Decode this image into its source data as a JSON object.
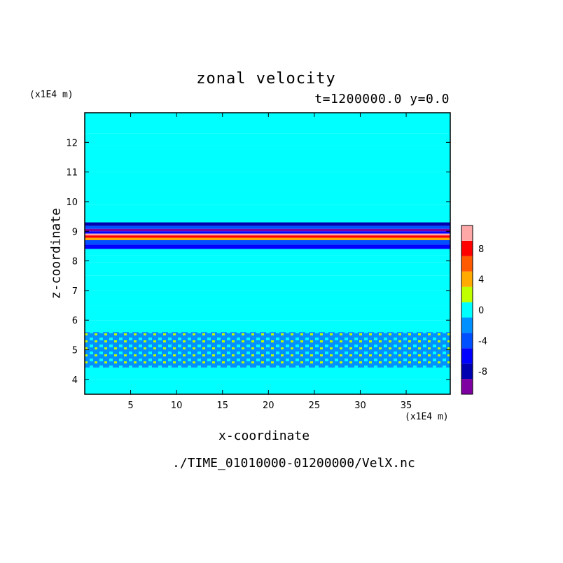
{
  "chart_data": {
    "type": "heatmap",
    "title": "zonal velocity",
    "subtitle": "t=1200000.0 y=0.0",
    "xlabel": "x-coordinate",
    "ylabel": "z-coordinate",
    "x_unit": "(x1E4 m)",
    "y_unit": "(x1E4 m)",
    "xlim": [
      0,
      39.8
    ],
    "ylim": [
      3.5,
      13.0
    ],
    "x_ticks": [
      5,
      10,
      15,
      20,
      25,
      30,
      35
    ],
    "y_ticks": [
      4,
      5,
      6,
      7,
      8,
      9,
      10,
      11,
      12
    ],
    "colorbar": {
      "levels": [
        -10,
        -9,
        -8,
        -7,
        -6,
        -5,
        -4,
        -3,
        -2,
        -1,
        0,
        1,
        2,
        3,
        4,
        5,
        6,
        7,
        8,
        9,
        10
      ],
      "tick_labels": [
        "8",
        "4",
        "0",
        "-4",
        "-8"
      ],
      "tick_values": [
        8,
        4,
        0,
        -4,
        -8
      ],
      "colors": [
        "#7f00a0",
        "#0000b0",
        "#0000ff",
        "#0050ff",
        "#0090ff",
        "#00ffff",
        "#c0ff00",
        "#ffaa00",
        "#ff5a00",
        "#ff0000",
        "#ffa8a8"
      ]
    },
    "bands": [
      {
        "z": [
          12.3,
          13.0
        ],
        "value": 0.8
      },
      {
        "z": [
          11.9,
          12.3
        ],
        "value": -0.4
      },
      {
        "z": [
          11.0,
          11.9
        ],
        "value": 0.6
      },
      {
        "z": [
          10.4,
          11.0
        ],
        "value": -0.5
      },
      {
        "z": [
          9.9,
          10.4
        ],
        "value": 0.7
      },
      {
        "z": [
          9.55,
          9.9
        ],
        "value": -0.8
      },
      {
        "z": [
          9.3,
          9.55
        ],
        "value": 0.5
      },
      {
        "z": [
          9.18,
          9.3
        ],
        "value": -7.5
      },
      {
        "z": [
          9.08,
          9.18
        ],
        "value": -4.5
      },
      {
        "z": [
          9.0,
          9.08
        ],
        "value": -9.0
      },
      {
        "z": [
          8.92,
          9.0
        ],
        "value": -6.0
      },
      {
        "z": [
          8.86,
          8.92
        ],
        "value": 9.5
      },
      {
        "z": [
          8.78,
          8.86
        ],
        "value": 7.5
      },
      {
        "z": [
          8.7,
          8.78
        ],
        "value": 3.0
      },
      {
        "z": [
          8.55,
          8.7
        ],
        "value": -3.0
      },
      {
        "z": [
          8.4,
          8.55
        ],
        "value": -5.5
      },
      {
        "z": [
          8.2,
          8.4
        ],
        "value": 0.4
      },
      {
        "z": [
          7.95,
          8.2
        ],
        "value": -0.6
      },
      {
        "z": [
          7.5,
          7.95
        ],
        "value": 0.5
      },
      {
        "z": [
          7.0,
          7.5
        ],
        "value": -0.5
      },
      {
        "z": [
          6.5,
          7.0
        ],
        "value": 0.5
      },
      {
        "z": [
          6.0,
          6.5
        ],
        "value": -0.4
      },
      {
        "z": [
          5.6,
          6.0
        ],
        "value": 0.6
      },
      {
        "z": [
          4.4,
          5.6
        ],
        "value": -1.5
      },
      {
        "z": [
          4.0,
          4.4
        ],
        "value": 0.5
      },
      {
        "z": [
          3.5,
          4.0
        ],
        "value": -0.5
      }
    ]
  },
  "file_path": "./TIME_01010000-01200000/VelX.nc"
}
